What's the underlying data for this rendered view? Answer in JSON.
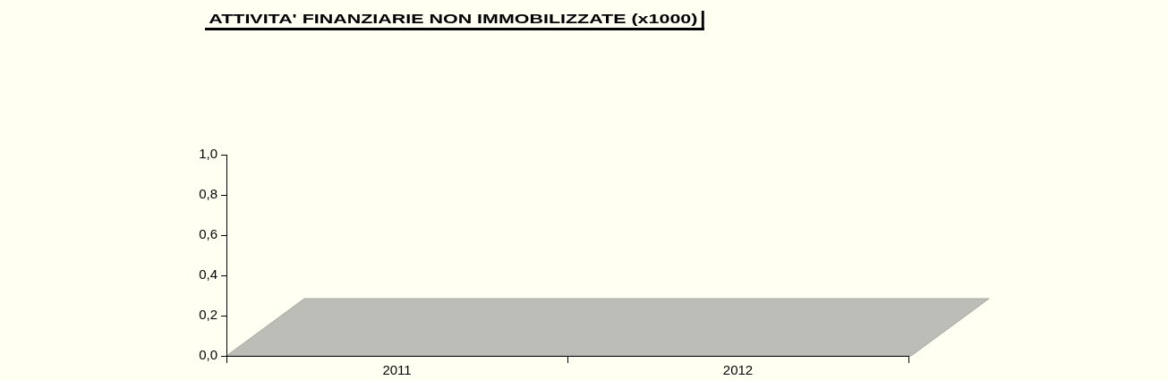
{
  "chart_data": {
    "type": "bar",
    "title": "ATTIVITA' FINANZIARIE NON IMMOBILIZZATE (x1000)",
    "categories": [
      "2011",
      "2012"
    ],
    "values": [
      0,
      0
    ],
    "ylim": [
      0,
      1
    ],
    "yticks": [
      {
        "value": 0,
        "label": "0,0"
      },
      {
        "value": 0.2,
        "label": "0,2"
      },
      {
        "value": 0.4,
        "label": "0,4"
      },
      {
        "value": 0.6,
        "label": "0,6"
      },
      {
        "value": 0.8,
        "label": "0,8"
      },
      {
        "value": 1,
        "label": "1,0"
      }
    ]
  }
}
